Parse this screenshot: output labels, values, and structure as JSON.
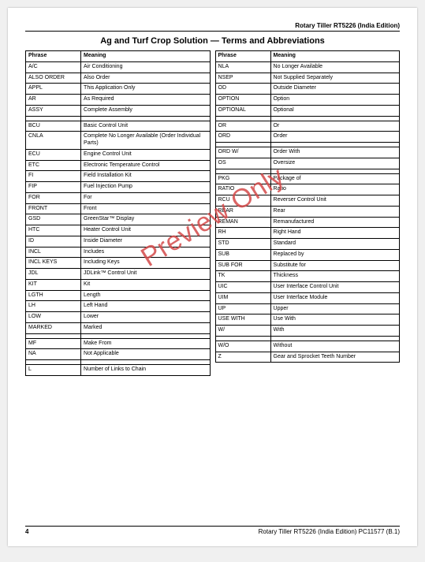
{
  "header": {
    "right": "Rotary Tiller RT5226 (India Edition)"
  },
  "title": "Ag and Turf Crop Solution — Terms and Abbreviations",
  "watermark": "Preview Only",
  "columns": {
    "left": {
      "headers": [
        "Phrase",
        "Meaning"
      ],
      "groups": [
        [
          [
            "A/C",
            "Air Conditioning"
          ],
          [
            "ALSO ORDER",
            "Also Order"
          ],
          [
            "APPL",
            "This Application Only"
          ],
          [
            "AR",
            "As Required"
          ],
          [
            "ASSY",
            "Complete Assembly"
          ]
        ],
        [
          [
            "BCU",
            "Basic Control Unit"
          ],
          [
            "CNLA",
            "Complete No Longer Available (Order Individual Parts)"
          ],
          [
            "ECU",
            "Engine Control Unit"
          ],
          [
            "ETC",
            "Electronic Temperature Control"
          ],
          [
            "FI",
            "Field Installation Kit"
          ],
          [
            "FIP",
            "Fuel Injection Pump"
          ],
          [
            "FOR",
            "For"
          ],
          [
            "FRONT",
            "Front"
          ],
          [
            "GSD",
            "GreenStar™ Display"
          ],
          [
            "HTC",
            "Heater Control Unit"
          ],
          [
            "ID",
            "Inside Diameter"
          ],
          [
            "INCL",
            "Includes"
          ],
          [
            "INCL KEYS",
            "Including Keys"
          ],
          [
            "JDL",
            "JDLink™ Control Unit"
          ],
          [
            "KIT",
            "Kit"
          ],
          [
            "LGTH",
            "Length"
          ],
          [
            "LH",
            "Left Hand"
          ],
          [
            "LOW",
            "Lower"
          ],
          [
            "MARKED",
            "Marked"
          ]
        ],
        [
          [
            "MF",
            "Make From"
          ],
          [
            "NA",
            "Not Applicable"
          ]
        ],
        [
          [
            "L",
            "Number of Links to Chain"
          ]
        ]
      ]
    },
    "right": {
      "headers": [
        "Phrase",
        "Meaning"
      ],
      "groups": [
        [
          [
            "NLA",
            "No Longer Available"
          ],
          [
            "NSEP",
            "Not Supplied Separately"
          ],
          [
            "OD",
            "Outside Diameter"
          ],
          [
            "OPTION",
            "Option"
          ],
          [
            "OPTIONAL",
            "Optional"
          ]
        ],
        [
          [
            "OR",
            "Or"
          ],
          [
            "ORD",
            "Order"
          ]
        ],
        [
          [
            "ORD W/",
            "Order With"
          ],
          [
            "OS",
            "Oversize"
          ]
        ],
        [
          [
            "PKG",
            "Package of"
          ],
          [
            "RATIO",
            "Ratio"
          ],
          [
            "RCU",
            "Reverser Control Unit"
          ],
          [
            "REAR",
            "Rear"
          ],
          [
            "REMAN",
            "Remanufactured"
          ],
          [
            "RH",
            "Right Hand"
          ],
          [
            "STD",
            "Standard"
          ],
          [
            "SUB",
            "Replaced by"
          ],
          [
            "SUB FOR",
            "Substitute for"
          ],
          [
            "TK",
            "Thickness"
          ],
          [
            "UIC",
            "User Interface Control Unit"
          ],
          [
            "UIM",
            "User Interface Module"
          ],
          [
            "UP",
            "Upper"
          ],
          [
            "USE WITH",
            "Use With"
          ],
          [
            "W/",
            "With"
          ]
        ],
        [
          [
            "W/O",
            "Without"
          ],
          [
            "Z",
            "Gear and Sprocket Teeth Number"
          ]
        ]
      ]
    }
  },
  "footer": {
    "page": "4",
    "right": "Rotary Tiller RT5226 (India Edition)   PC11577  (B.1)"
  }
}
